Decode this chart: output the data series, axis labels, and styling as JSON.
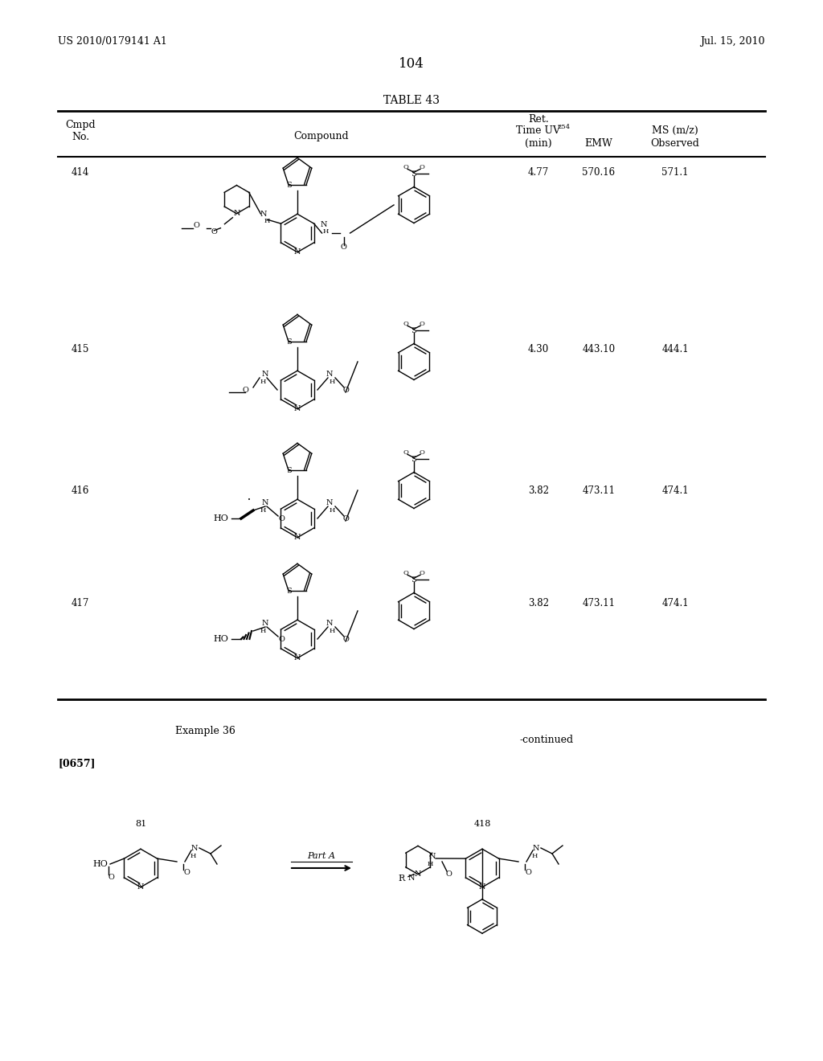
{
  "page_header_left": "US 2010/0179141 A1",
  "page_header_right": "Jul. 15, 2010",
  "page_number": "104",
  "table_title": "TABLE 43",
  "col_headers": [
    "Cmpd\nNo.",
    "Compound",
    "Ret.\nTime UV₂₅₄\n(min)",
    "EMW",
    "MS (m/z)\nObserved"
  ],
  "rows": [
    {
      "cmpd": "414",
      "ret_time": "4.77",
      "emw": "570.16",
      "ms": "571.1"
    },
    {
      "cmpd": "415",
      "ret_time": "4.30",
      "emw": "443.10",
      "ms": "444.1"
    },
    {
      "cmpd": "416",
      "ret_time": "3.82",
      "emw": "473.11",
      "ms": "474.1"
    },
    {
      "cmpd": "417",
      "ret_time": "3.82",
      "emw": "473.11",
      "ms": "474.1"
    }
  ],
  "example_label": "Example 36",
  "continued_label": "-continued",
  "paragraph_label": "[0657]",
  "compound_81_label": "81",
  "compound_418_label": "418",
  "reaction_arrow_label": "Part A",
  "bg_color": "#ffffff",
  "text_color": "#000000",
  "line_color": "#000000",
  "font_size_header": 9,
  "font_size_body": 8.5,
  "font_size_page": 9
}
